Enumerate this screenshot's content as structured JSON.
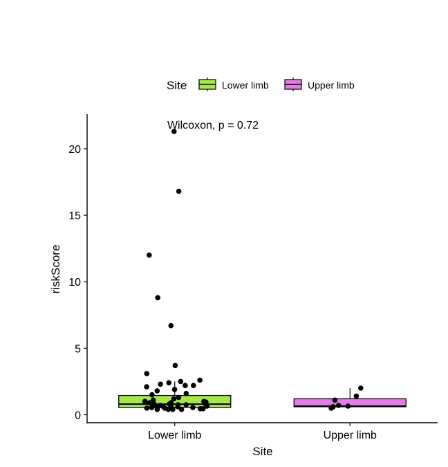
{
  "chart_data": {
    "type": "box",
    "xlabel": "Site",
    "ylabel": "riskScore",
    "ylim": [
      -0.6,
      22.6
    ],
    "yticks": [
      0,
      5,
      10,
      15,
      20
    ],
    "grid": false,
    "legend_position": "top",
    "legend_title": "Site",
    "annotation": "Wilcoxon, p = 0.72",
    "categories": [
      "Lower limb",
      "Upper limb"
    ],
    "series": [
      {
        "name": "Lower limb",
        "color": "#a6e84a",
        "box": {
          "q1": 0.55,
          "median": 0.8,
          "q3": 1.45,
          "whisker_low": 0.4,
          "whisker_high": 2.5
        },
        "points": [
          21.3,
          16.8,
          12.0,
          8.8,
          6.7,
          3.7,
          3.1,
          2.6,
          2.5,
          2.4,
          2.3,
          2.2,
          2.2,
          2.1,
          1.9,
          1.8,
          1.6,
          1.5,
          1.3,
          1.2,
          1.1,
          1.0,
          1.0,
          0.95,
          0.9,
          0.9,
          0.85,
          0.8,
          0.8,
          0.75,
          0.75,
          0.7,
          0.7,
          0.65,
          0.65,
          0.6,
          0.6,
          0.6,
          0.55,
          0.55,
          0.5,
          0.5,
          0.5,
          0.45,
          0.45,
          0.45,
          0.4,
          0.4,
          0.4,
          0.4
        ]
      },
      {
        "name": "Upper limb",
        "color": "#e37be8",
        "box": {
          "q1": 0.6,
          "median": 0.65,
          "q3": 1.2,
          "whisker_low": 0.5,
          "whisker_high": 2.0
        },
        "points": [
          2.0,
          1.4,
          1.1,
          0.7,
          0.65,
          0.6,
          0.5
        ]
      }
    ]
  }
}
